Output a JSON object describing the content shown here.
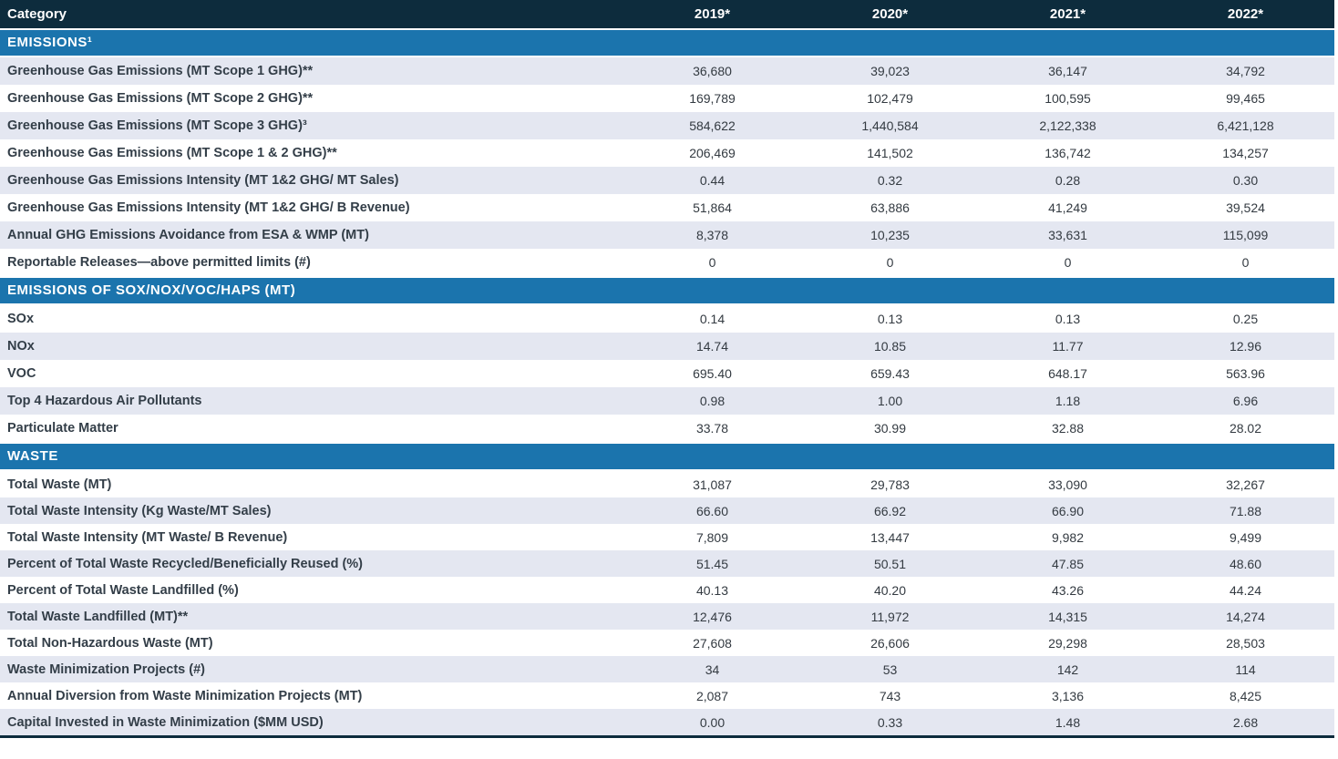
{
  "table": {
    "colors": {
      "header_bg": "#0d2c3d",
      "section_bg": "#1b74ad",
      "shaded_row_bg": "#e4e7f1",
      "label_text": "#333e48",
      "value_text": "#333a41"
    },
    "header": {
      "category_label": "Category",
      "years": [
        "2019*",
        "2020*",
        "2021*",
        "2022*"
      ]
    },
    "sections": [
      {
        "title": "EMISSIONS¹",
        "first_shaded": true,
        "rows": [
          {
            "label": "Greenhouse Gas Emissions (MT Scope 1 GHG)**",
            "values": [
              "36,680",
              "39,023",
              "36,147",
              "34,792"
            ]
          },
          {
            "label": "Greenhouse Gas Emissions (MT Scope 2 GHG)**",
            "values": [
              "169,789",
              "102,479",
              "100,595",
              "99,465"
            ]
          },
          {
            "label": "Greenhouse Gas Emissions (MT Scope 3 GHG)³",
            "values": [
              "584,622",
              "1,440,584",
              "2,122,338",
              "6,421,128"
            ]
          },
          {
            "label": "Greenhouse Gas Emissions (MT Scope 1 & 2 GHG)**",
            "values": [
              "206,469",
              "141,502",
              "136,742",
              "134,257"
            ]
          },
          {
            "label": "Greenhouse Gas Emissions Intensity (MT 1&2 GHG/ MT Sales)",
            "values": [
              "0.44",
              "0.32",
              "0.28",
              "0.30"
            ]
          },
          {
            "label": "Greenhouse Gas Emissions Intensity (MT 1&2 GHG/ B Revenue)",
            "values": [
              "51,864",
              "63,886",
              "41,249",
              "39,524"
            ]
          },
          {
            "label": "Annual GHG Emissions Avoidance from ESA & WMP (MT)",
            "values": [
              "8,378",
              "10,235",
              "33,631",
              "115,099"
            ]
          },
          {
            "label": "Reportable Releases—above permitted limits (#)",
            "values": [
              "0",
              "0",
              "0",
              "0"
            ]
          }
        ]
      },
      {
        "title": "EMISSIONS OF SOX/NOX/VOC/HAPS (MT)",
        "first_shaded": false,
        "rows": [
          {
            "label": "SOx",
            "values": [
              "0.14",
              "0.13",
              "0.13",
              "0.25"
            ]
          },
          {
            "label": "NOx",
            "values": [
              "14.74",
              "10.85",
              "11.77",
              "12.96"
            ]
          },
          {
            "label": "VOC",
            "values": [
              "695.40",
              "659.43",
              "648.17",
              "563.96"
            ]
          },
          {
            "label": "Top 4 Hazardous Air Pollutants",
            "values": [
              "0.98",
              "1.00",
              "1.18",
              "6.96"
            ]
          },
          {
            "label": "Particulate Matter",
            "values": [
              "33.78",
              "30.99",
              "32.88",
              "28.02"
            ]
          }
        ]
      },
      {
        "title": "WASTE",
        "first_shaded": false,
        "rows": [
          {
            "label": "Total Waste (MT)",
            "values": [
              "31,087",
              "29,783",
              "33,090",
              "32,267"
            ]
          },
          {
            "label": "Total Waste Intensity (Kg Waste/MT Sales)",
            "values": [
              "66.60",
              "66.92",
              "66.90",
              "71.88"
            ]
          },
          {
            "label": "Total Waste Intensity (MT Waste/ B Revenue)",
            "values": [
              "7,809",
              "13,447",
              "9,982",
              "9,499"
            ]
          },
          {
            "label": "Percent of Total Waste Recycled/Beneficially Reused (%)",
            "values": [
              "51.45",
              "50.51",
              "47.85",
              "48.60"
            ]
          },
          {
            "label": "Percent of Total Waste Landfilled (%)",
            "values": [
              "40.13",
              "40.20",
              "43.26",
              "44.24"
            ]
          },
          {
            "label": "Total Waste Landfilled (MT)**",
            "values": [
              "12,476",
              "11,972",
              "14,315",
              "14,274"
            ]
          },
          {
            "label": "Total Non-Hazardous Waste (MT)",
            "values": [
              "27,608",
              "26,606",
              "29,298",
              "28,503"
            ]
          },
          {
            "label": "Waste Minimization Projects (#)",
            "values": [
              "34",
              "53",
              "142",
              "114"
            ]
          },
          {
            "label": "Annual Diversion from Waste Minimization Projects (MT)",
            "values": [
              "2,087",
              "743",
              "3,136",
              "8,425"
            ]
          },
          {
            "label": "Capital Invested in Waste Minimization ($MM USD)",
            "values": [
              "0.00",
              "0.33",
              "1.48",
              "2.68"
            ]
          }
        ]
      }
    ]
  }
}
